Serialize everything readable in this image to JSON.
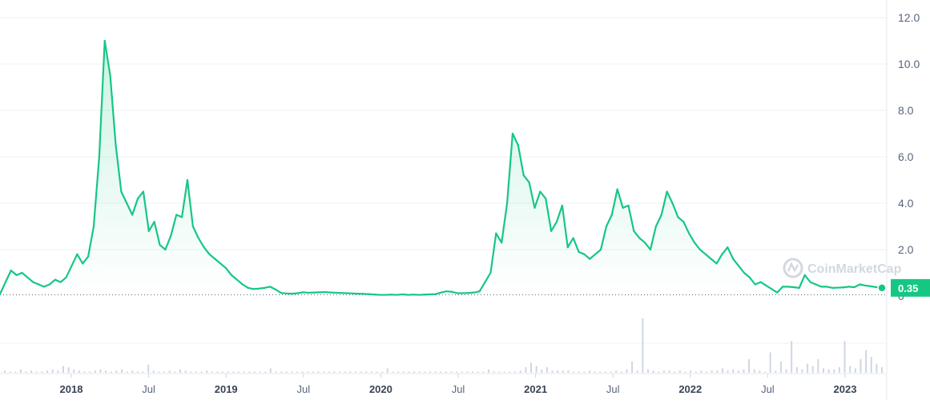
{
  "chart_data": {
    "type": "area",
    "y_ticks": [
      "12.0",
      "10.0",
      "8.0",
      "6.0",
      "4.0",
      "2.0",
      "0"
    ],
    "ylim": [
      0,
      12
    ],
    "x_ticks": [
      "2018",
      "Jul",
      "2019",
      "Jul",
      "2020",
      "Jul",
      "2021",
      "Jul",
      "2022",
      "Jul",
      "2023"
    ],
    "x_tick_years": [
      true,
      false,
      true,
      false,
      true,
      false,
      true,
      false,
      true,
      false,
      true
    ],
    "grid": true,
    "current_value": "0.35",
    "line_color": "#16c784",
    "down_color": "#ea3943",
    "baseline_value": 0.05,
    "watermark": "CoinMarketCap",
    "series": [
      {
        "values": [
          0.08,
          0.6,
          1.1,
          0.9,
          1.0,
          0.8,
          0.6,
          0.5,
          0.4,
          0.5,
          0.7,
          0.6,
          0.8,
          1.3,
          1.8,
          1.4,
          1.7,
          3.0,
          6.0,
          11.0,
          9.5,
          6.5,
          4.5,
          4.0,
          3.5,
          4.2,
          4.5,
          2.8,
          3.2,
          2.2,
          2.0,
          2.6,
          3.5,
          3.4,
          5.0,
          3.0,
          2.5,
          2.1,
          1.8,
          1.6,
          1.4,
          1.2,
          0.9,
          0.7,
          0.5,
          0.35,
          0.3,
          0.32,
          0.35,
          0.4,
          0.28,
          0.13,
          0.11,
          0.1,
          0.12,
          0.16,
          0.14,
          0.15,
          0.16,
          0.17,
          0.15,
          0.14,
          0.13,
          0.12,
          0.11,
          0.1,
          0.09,
          0.08,
          0.06,
          0.05,
          0.05,
          0.06,
          0.05,
          0.07,
          0.05,
          0.06,
          0.05,
          0.06,
          0.07,
          0.08,
          0.15,
          0.2,
          0.18,
          0.12,
          0.12,
          0.13,
          0.15,
          0.2,
          0.6,
          1.0,
          2.7,
          2.3,
          4.0,
          7.0,
          6.5,
          5.2,
          4.9,
          3.8,
          4.5,
          4.2,
          2.8,
          3.2,
          3.9,
          2.1,
          2.5,
          1.9,
          1.8,
          1.6,
          1.8,
          2.0,
          3.0,
          3.5,
          4.6,
          3.8,
          3.9,
          2.8,
          2.5,
          2.3,
          2.0,
          3.0,
          3.5,
          4.5,
          4.0,
          3.4,
          3.2,
          2.7,
          2.3,
          2.0,
          1.8,
          1.6,
          1.4,
          1.8,
          2.1,
          1.6,
          1.3,
          1.0,
          0.8,
          0.5,
          0.6,
          0.45,
          0.3,
          0.15,
          0.4,
          0.4,
          0.38,
          0.35,
          0.9,
          0.6,
          0.5,
          0.4,
          0.4,
          0.35,
          0.36,
          0.37,
          0.4,
          0.38,
          0.5,
          0.45,
          0.42,
          0.38,
          0.35
        ]
      }
    ],
    "volume": {
      "values": [
        2,
        1,
        1,
        3,
        1,
        2,
        1,
        1,
        2,
        3,
        2,
        6,
        5,
        3,
        2,
        1,
        1,
        2,
        3,
        2,
        1,
        2,
        3,
        1,
        2,
        1,
        1,
        7,
        2,
        1,
        1,
        2,
        1,
        3,
        2,
        1,
        1,
        1,
        2,
        1,
        1,
        1,
        1,
        1,
        1,
        1,
        1,
        1,
        1,
        1,
        4,
        1,
        1,
        1,
        1,
        1,
        1,
        1,
        1,
        1,
        1,
        1,
        1,
        1,
        1,
        1,
        1,
        1,
        1,
        1,
        1,
        1,
        4,
        1,
        1,
        1,
        1,
        1,
        1,
        1,
        1,
        1,
        1,
        1,
        1,
        1,
        1,
        1,
        1,
        1,
        1,
        3,
        1,
        1,
        1,
        1,
        1,
        2,
        5,
        9,
        6,
        3,
        5,
        2,
        2,
        2,
        2,
        1,
        1,
        1,
        2,
        1,
        1,
        1,
        1,
        2,
        1,
        3,
        10,
        2,
        48,
        3,
        2,
        1,
        2,
        2,
        1,
        2,
        1,
        2,
        1,
        2,
        1,
        2,
        2,
        4,
        2,
        3,
        2,
        3,
        12,
        3,
        2,
        1,
        18,
        2,
        10,
        3,
        28,
        5,
        3,
        8,
        6,
        12,
        4,
        3,
        3,
        5,
        28,
        6,
        4,
        12,
        20,
        14,
        8,
        5
      ]
    }
  }
}
